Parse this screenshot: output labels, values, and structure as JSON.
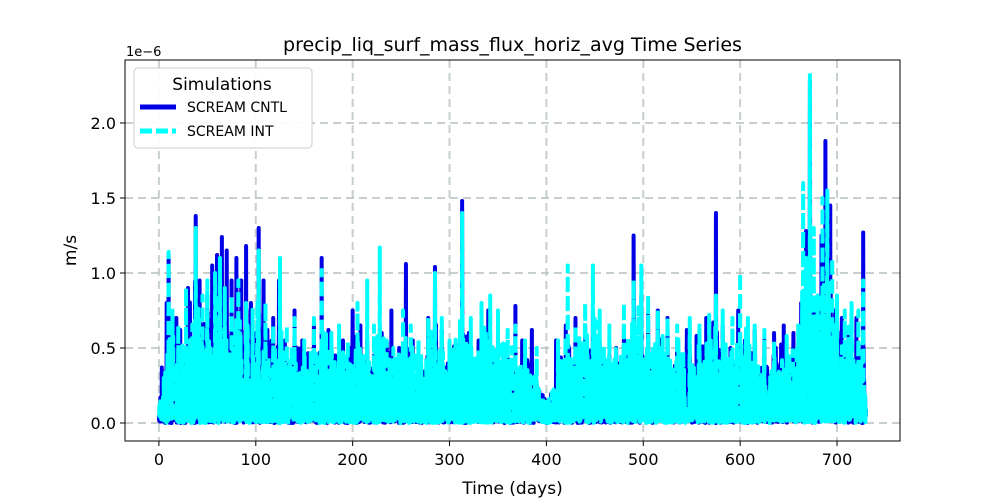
{
  "chart_data": {
    "type": "line",
    "title": "precip_liq_surf_mass_flux_horiz_avg Time Series",
    "xlabel": "Time (days)",
    "ylabel": "m/s",
    "y_offset_label": "1e−6",
    "xlim": [
      -35,
      765
    ],
    "ylim": [
      -0.12,
      2.42
    ],
    "x_ticks": [
      0,
      100,
      200,
      300,
      400,
      500,
      600,
      700
    ],
    "y_ticks": [
      0.0,
      0.5,
      1.0,
      1.5,
      2.0
    ],
    "y_tick_labels": [
      "0.0",
      "0.5",
      "1.0",
      "1.5",
      "2.0"
    ],
    "grid": true,
    "legend": {
      "title": "Simulations",
      "placement": "upper-left"
    },
    "series": [
      {
        "name": "SCREAM CNTL",
        "color": "#0000e6",
        "style": "solid",
        "peaks": [
          [
            0,
            0.05
          ],
          [
            3,
            0.37
          ],
          [
            8,
            0.8
          ],
          [
            10,
            1.12
          ],
          [
            14,
            0.65
          ],
          [
            18,
            0.7
          ],
          [
            22,
            0.62
          ],
          [
            30,
            0.9
          ],
          [
            38,
            1.38
          ],
          [
            42,
            0.95
          ],
          [
            50,
            0.85
          ],
          [
            55,
            1.05
          ],
          [
            60,
            1.12
          ],
          [
            65,
            1.24
          ],
          [
            70,
            1.15
          ],
          [
            75,
            0.95
          ],
          [
            80,
            1.1
          ],
          [
            85,
            0.95
          ],
          [
            90,
            1.18
          ],
          [
            95,
            0.8
          ],
          [
            103,
            1.3
          ],
          [
            108,
            0.95
          ],
          [
            112,
            0.62
          ],
          [
            118,
            0.7
          ],
          [
            124,
            0.95
          ],
          [
            130,
            0.55
          ],
          [
            140,
            0.75
          ],
          [
            148,
            0.55
          ],
          [
            160,
            0.65
          ],
          [
            168,
            1.1
          ],
          [
            175,
            0.62
          ],
          [
            182,
            0.45
          ],
          [
            190,
            0.55
          ],
          [
            200,
            0.75
          ],
          [
            208,
            0.65
          ],
          [
            215,
            0.55
          ],
          [
            222,
            0.45
          ],
          [
            230,
            0.6
          ],
          [
            240,
            0.75
          ],
          [
            248,
            0.5
          ],
          [
            255,
            1.06
          ],
          [
            262,
            0.55
          ],
          [
            270,
            0.35
          ],
          [
            278,
            0.7
          ],
          [
            285,
            1.04
          ],
          [
            292,
            0.62
          ],
          [
            300,
            0.45
          ],
          [
            313,
            1.48
          ],
          [
            320,
            0.6
          ],
          [
            330,
            0.55
          ],
          [
            340,
            0.75
          ],
          [
            350,
            0.55
          ],
          [
            360,
            0.45
          ],
          [
            368,
            0.78
          ],
          [
            375,
            0.55
          ],
          [
            385,
            0.62
          ],
          [
            400,
            0.1
          ],
          [
            410,
            0.55
          ],
          [
            420,
            0.65
          ],
          [
            430,
            0.7
          ],
          [
            440,
            0.65
          ],
          [
            448,
            0.75
          ],
          [
            455,
            0.55
          ],
          [
            465,
            0.45
          ],
          [
            472,
            0.5
          ],
          [
            480,
            0.62
          ],
          [
            490,
            1.25
          ],
          [
            498,
            0.85
          ],
          [
            505,
            0.72
          ],
          [
            515,
            0.75
          ],
          [
            525,
            0.7
          ],
          [
            535,
            0.55
          ],
          [
            545,
            0.62
          ],
          [
            555,
            0.58
          ],
          [
            565,
            0.7
          ],
          [
            575,
            1.4
          ],
          [
            582,
            0.65
          ],
          [
            590,
            0.5
          ],
          [
            598,
            0.75
          ],
          [
            605,
            0.55
          ],
          [
            615,
            0.62
          ],
          [
            625,
            0.55
          ],
          [
            635,
            0.6
          ],
          [
            645,
            0.65
          ],
          [
            655,
            0.6
          ],
          [
            663,
            0.8
          ],
          [
            668,
            1.28
          ],
          [
            672,
            2.28
          ],
          [
            677,
            0.8
          ],
          [
            684,
            1.25
          ],
          [
            688,
            1.88
          ],
          [
            693,
            1.45
          ],
          [
            698,
            0.75
          ],
          [
            705,
            0.7
          ],
          [
            712,
            0.6
          ],
          [
            720,
            0.7
          ],
          [
            727,
            1.27
          ],
          [
            730,
            0.05
          ]
        ]
      },
      {
        "name": "SCREAM INT",
        "color": "#00ffff",
        "style": "dashed",
        "peaks": [
          [
            0,
            0.05
          ],
          [
            5,
            0.3
          ],
          [
            10,
            1.14
          ],
          [
            14,
            0.75
          ],
          [
            20,
            0.65
          ],
          [
            28,
            0.9
          ],
          [
            38,
            1.3
          ],
          [
            45,
            0.85
          ],
          [
            50,
            0.95
          ],
          [
            58,
            1.0
          ],
          [
            63,
            1.1
          ],
          [
            68,
            0.9
          ],
          [
            75,
            0.85
          ],
          [
            82,
            0.95
          ],
          [
            90,
            0.8
          ],
          [
            103,
            1.15
          ],
          [
            110,
            0.8
          ],
          [
            118,
            0.65
          ],
          [
            125,
            1.1
          ],
          [
            132,
            0.65
          ],
          [
            140,
            0.7
          ],
          [
            150,
            0.55
          ],
          [
            160,
            0.7
          ],
          [
            168,
            1.02
          ],
          [
            178,
            0.6
          ],
          [
            186,
            0.65
          ],
          [
            195,
            0.55
          ],
          [
            205,
            0.8
          ],
          [
            215,
            0.95
          ],
          [
            222,
            0.65
          ],
          [
            228,
            1.17
          ],
          [
            235,
            0.55
          ],
          [
            242,
            0.5
          ],
          [
            252,
            0.75
          ],
          [
            260,
            0.65
          ],
          [
            268,
            0.55
          ],
          [
            278,
            0.7
          ],
          [
            285,
            1.0
          ],
          [
            292,
            0.7
          ],
          [
            300,
            0.55
          ],
          [
            313,
            1.4
          ],
          [
            322,
            0.7
          ],
          [
            333,
            0.8
          ],
          [
            342,
            0.85
          ],
          [
            350,
            0.75
          ],
          [
            360,
            0.62
          ],
          [
            368,
            0.65
          ],
          [
            378,
            0.55
          ],
          [
            390,
            0.5
          ],
          [
            400,
            0.1
          ],
          [
            412,
            0.55
          ],
          [
            422,
            1.05
          ],
          [
            430,
            0.65
          ],
          [
            440,
            0.8
          ],
          [
            448,
            1.05
          ],
          [
            455,
            0.75
          ],
          [
            465,
            0.65
          ],
          [
            480,
            0.8
          ],
          [
            490,
            0.95
          ],
          [
            498,
            1.05
          ],
          [
            505,
            0.85
          ],
          [
            515,
            0.75
          ],
          [
            525,
            0.7
          ],
          [
            535,
            0.65
          ],
          [
            548,
            0.7
          ],
          [
            558,
            0.65
          ],
          [
            568,
            0.72
          ],
          [
            575,
            0.85
          ],
          [
            582,
            0.75
          ],
          [
            592,
            0.7
          ],
          [
            600,
            1.0
          ],
          [
            608,
            0.7
          ],
          [
            615,
            0.65
          ],
          [
            625,
            0.62
          ],
          [
            635,
            0.55
          ],
          [
            648,
            0.58
          ],
          [
            660,
            0.65
          ],
          [
            665,
            1.6
          ],
          [
            668,
            1.1
          ],
          [
            672,
            2.32
          ],
          [
            676,
            1.3
          ],
          [
            680,
            0.85
          ],
          [
            685,
            1.5
          ],
          [
            690,
            1.55
          ],
          [
            695,
            1.1
          ],
          [
            700,
            0.85
          ],
          [
            708,
            0.75
          ],
          [
            715,
            0.8
          ],
          [
            722,
            0.75
          ],
          [
            727,
            0.95
          ],
          [
            730,
            0.05
          ]
        ]
      }
    ]
  }
}
